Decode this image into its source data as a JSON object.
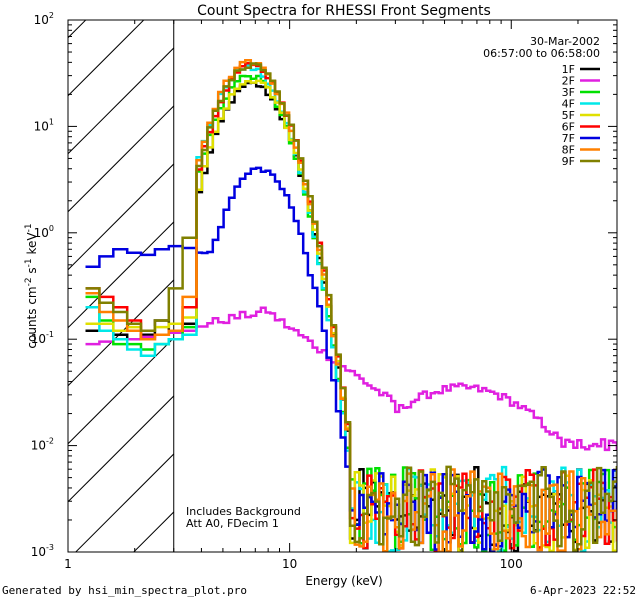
{
  "chart_data": {
    "type": "line",
    "title": "Count Spectra for RHESSI Front Segments",
    "xlabel": "Energy (keV)",
    "ylabel_parts": [
      "counts cm",
      "-2",
      " s",
      "-1",
      " keV",
      "-1"
    ],
    "xscale": "log",
    "yscale": "log",
    "xlim": [
      1,
      300
    ],
    "ylim": [
      0.001,
      100
    ],
    "x_ticks": [
      {
        "value": 1,
        "label": "1"
      },
      {
        "value": 10,
        "label": "10"
      },
      {
        "value": 100,
        "label": "100"
      }
    ],
    "y_ticks": [
      {
        "value": 0.001,
        "base": "10",
        "exp": "-3"
      },
      {
        "value": 0.01,
        "base": "10",
        "exp": "-2"
      },
      {
        "value": 0.1,
        "base": "10",
        "exp": "-1"
      },
      {
        "value": 1,
        "base": "10",
        "exp": "0"
      },
      {
        "value": 10,
        "base": "10",
        "exp": "1"
      },
      {
        "value": 100,
        "base": "10",
        "exp": "2"
      }
    ],
    "date": "30-Mar-2002",
    "time_range": "06:57:00 to 06:58:00",
    "hatched_region_xmax": 3,
    "annotations": [
      "Includes Background",
      "Att A0, FDecim 1"
    ],
    "legend_position": "top-right",
    "series": [
      {
        "name": "1F",
        "color": "#000000",
        "low": [
          0.12,
          0.12,
          0.11,
          0.1,
          0.11,
          0.15,
          0.12,
          0.14
        ],
        "peak": 25,
        "peak_e": 6.8,
        "tail": 1.0
      },
      {
        "name": "2F",
        "color": "#e020e0",
        "low": [
          0.09,
          0.095,
          0.1,
          0.1,
          0.105,
          0.11,
          0.115,
          0.12
        ],
        "peak": 0.18,
        "peak_e": 7.0,
        "tail": 1.0
      },
      {
        "name": "3F",
        "color": "#00e000",
        "low": [
          0.25,
          0.15,
          0.09,
          0.09,
          0.08,
          0.09,
          0.1,
          0.13
        ],
        "peak": 30,
        "peak_e": 6.6,
        "tail": 0.85
      },
      {
        "name": "4F",
        "color": "#00e8e8",
        "low": [
          0.2,
          0.12,
          0.1,
          0.08,
          0.07,
          0.09,
          0.1,
          0.11
        ],
        "peak": 36,
        "peak_e": 6.5,
        "tail": 1.0
      },
      {
        "name": "5F",
        "color": "#e0e000",
        "low": [
          0.14,
          0.14,
          0.12,
          0.13,
          0.12,
          0.13,
          0.14,
          0.16
        ],
        "peak": 27,
        "peak_e": 6.8,
        "tail": 1.05
      },
      {
        "name": "6F",
        "color": "#ff0000",
        "low": [
          0.3,
          0.25,
          0.2,
          0.15,
          0.1,
          0.11,
          0.12,
          0.2
        ],
        "peak": 38,
        "peak_e": 6.7,
        "tail": 1.0
      },
      {
        "name": "7F",
        "color": "#0000e0",
        "low": [
          0.48,
          0.6,
          0.7,
          0.65,
          0.62,
          0.7,
          0.75,
          0.72
        ],
        "peak": 4,
        "peak_e": 7.3,
        "tail": 1.15
      },
      {
        "name": "8F",
        "color": "#ff8000",
        "low": [
          0.27,
          0.18,
          0.15,
          0.12,
          0.1,
          0.11,
          0.12,
          0.25
        ],
        "peak": 40,
        "peak_e": 6.6,
        "tail": 1.0
      },
      {
        "name": "9F",
        "color": "#808000",
        "low": [
          0.3,
          0.22,
          0.18,
          0.14,
          0.12,
          0.15,
          0.3,
          0.9
        ],
        "peak": 38,
        "peak_e": 6.7,
        "tail": 1.0
      }
    ]
  },
  "footer": {
    "left": "Generated by hsi_min_spectra_plot.pro",
    "right": "6-Apr-2023 22:52"
  }
}
